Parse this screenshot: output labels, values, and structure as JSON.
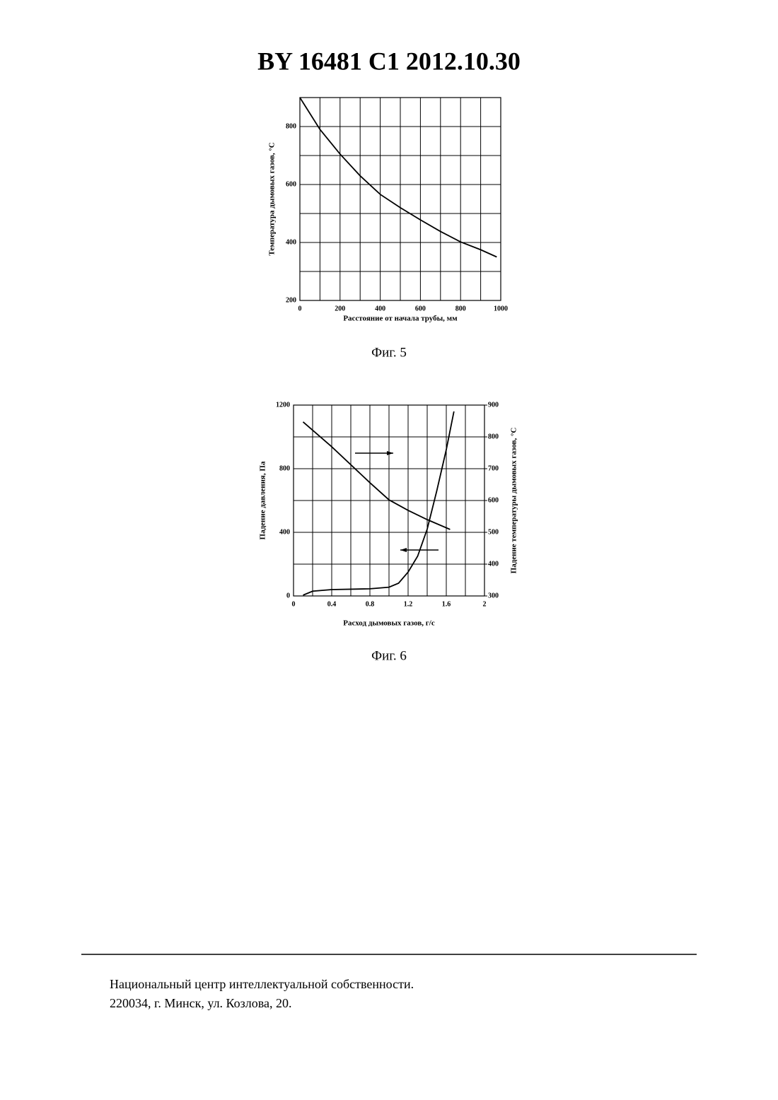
{
  "header": {
    "title": "BY 16481 C1 2012.10.30"
  },
  "chart_data": [
    {
      "type": "line",
      "caption": "Фиг. 5",
      "xlabel": "Расстояние от начала трубы, мм",
      "ylabel": "Температура дымовых газов, °С",
      "xlim": [
        0,
        1000
      ],
      "ylim": [
        200,
        900
      ],
      "xticks": [
        0,
        200,
        400,
        600,
        800,
        1000
      ],
      "yticks": [
        200,
        400,
        600,
        800
      ],
      "xgrid": [
        100,
        300,
        500,
        700,
        900
      ],
      "ygrid": [
        300,
        500,
        700,
        900
      ],
      "series": [
        {
          "color": "#000000",
          "x": [
            0,
            100,
            200,
            300,
            400,
            500,
            600,
            700,
            800,
            900,
            980
          ],
          "values": [
            900,
            790,
            705,
            630,
            566,
            520,
            478,
            438,
            402,
            375,
            350
          ]
        }
      ]
    },
    {
      "type": "line",
      "caption": "Фиг. 6",
      "xlabel": "Расход дымовых газов, г/с",
      "ylabel": "Падение давления, Па",
      "y2label": "Падение температуры дымовых газов, °С",
      "xlim": [
        0,
        2
      ],
      "ylim": [
        0,
        1200
      ],
      "y2lim": [
        300,
        900
      ],
      "xticks": [
        0,
        0.4,
        0.8,
        1.2,
        1.6,
        2
      ],
      "yticks": [
        0,
        400,
        800,
        1200
      ],
      "y2ticks": [
        300,
        400,
        500,
        600,
        700,
        800,
        900
      ],
      "xgrid": [
        0.2,
        0.6,
        1.0,
        1.4,
        1.8
      ],
      "ygrid": [
        200,
        600,
        1000
      ],
      "series": [
        {
          "color": "#000000",
          "x": [
            0.1,
            0.2,
            0.4,
            0.8,
            1.0,
            1.1,
            1.2,
            1.3,
            1.4,
            1.5,
            1.6,
            1.68
          ],
          "values": [
            5,
            30,
            40,
            45,
            55,
            80,
            150,
            250,
            420,
            660,
            920,
            1160
          ]
        },
        {
          "color": "#000000",
          "axis": "y2",
          "x": [
            0.1,
            0.4,
            0.8,
            1.0,
            1.2,
            1.4,
            1.64
          ],
          "values": [
            847,
            769,
            656,
            602,
            569,
            540,
            509
          ]
        }
      ]
    }
  ],
  "footer": {
    "lines": [
      "Национальный центр интеллектуальной собственности.",
      "220034, г. Минск, ул. Козлова, 20."
    ]
  }
}
